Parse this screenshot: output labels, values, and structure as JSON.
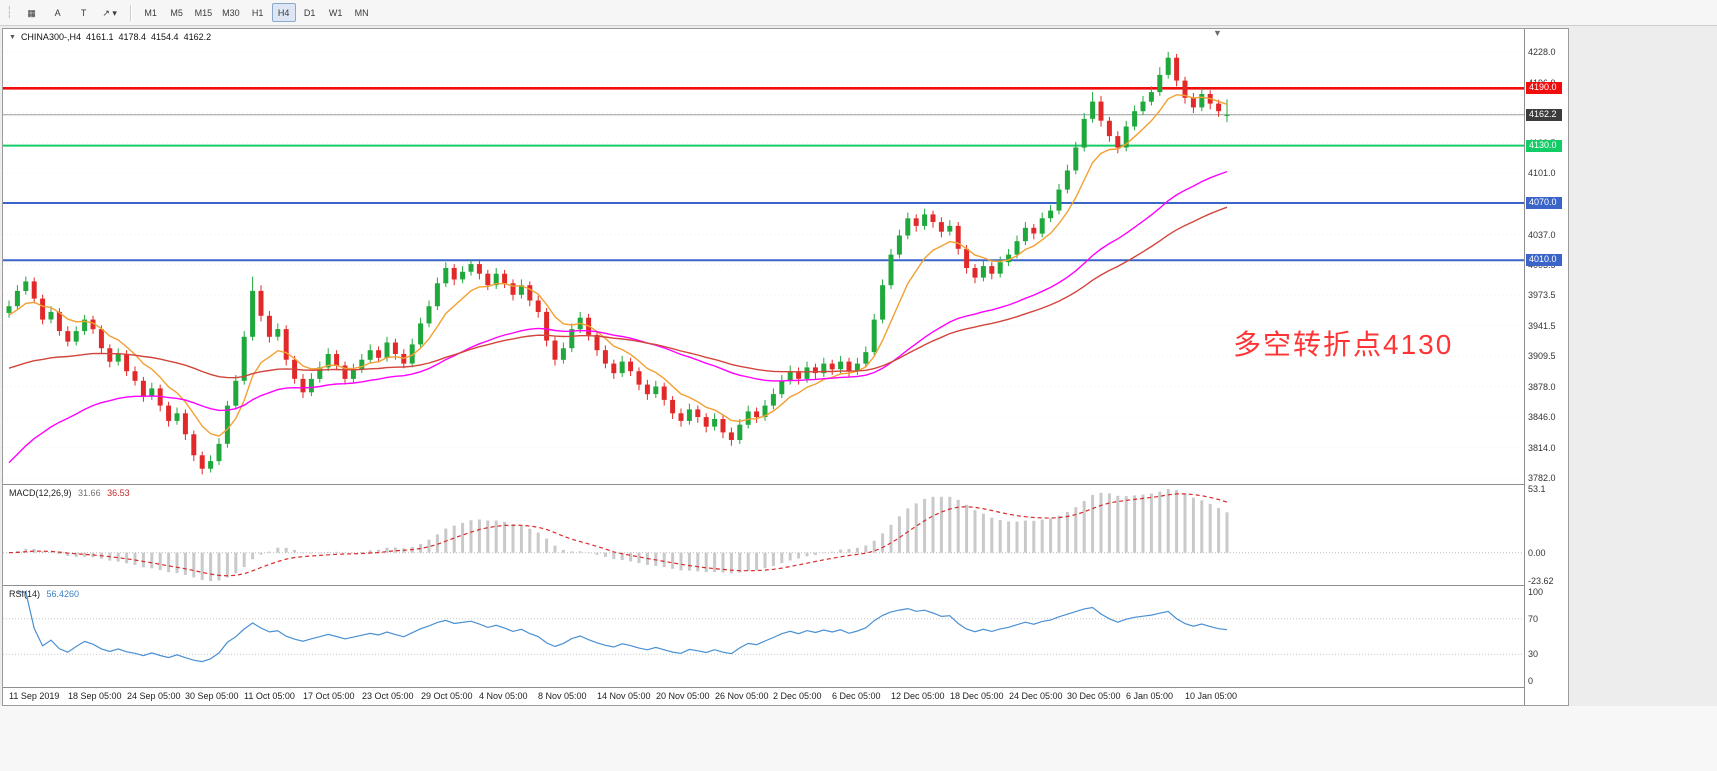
{
  "toolbar": {
    "tools": [
      {
        "name": "chart-window-tool-icon",
        "glyph": "▦"
      },
      {
        "name": "text-a-tool-icon",
        "glyph": "A"
      },
      {
        "name": "text-t-tool-icon",
        "glyph": "T"
      },
      {
        "name": "arrow-draw-tool-icon",
        "glyph": "↗ ▾"
      }
    ],
    "timeframes": [
      "M1",
      "M5",
      "M15",
      "M30",
      "H1",
      "H4",
      "D1",
      "W1",
      "MN"
    ],
    "active_timeframe": "H4"
  },
  "chart_data": {
    "type": "candlestick",
    "symbol": "CHINA300-",
    "timeframe": "H4",
    "symbol_tf": "CHINA300-,H4",
    "quote": {
      "open": "4161.1",
      "high": "4178.4",
      "low": "4154.4",
      "close": "4162.2"
    },
    "candle_colors": {
      "up": "#1fa83c",
      "down": "#e22929"
    },
    "price_axis": {
      "min": 3776,
      "max": 4252,
      "ticks": [
        3782,
        3814,
        3846,
        3878,
        3909.5,
        3941.5,
        3973.5,
        4005.5,
        4037,
        4069,
        4101,
        4132.5,
        4164.5,
        4196,
        4228
      ],
      "tick_labels": [
        "3782.0",
        "3814.0",
        "3846.0",
        "3878.0",
        "3909.5",
        "3941.5",
        "3973.5",
        "4005.5",
        "4037.0",
        "4069.0",
        "4101.0",
        "4132.5",
        "4164.5",
        "4196.0",
        "4228.0"
      ]
    },
    "x_axis": {
      "labels": [
        "11 Sep 2019",
        "18 Sep 05:00",
        "24 Sep 05:00",
        "30 Sep 05:00",
        "11 Oct 05:00",
        "17 Oct 05:00",
        "23 Oct 05:00",
        "29 Oct 05:00",
        "4 Nov 05:00",
        "8 Nov 05:00",
        "14 Nov 05:00",
        "20 Nov 05:00",
        "26 Nov 05:00",
        "2 Dec 05:00",
        "6 Dec 05:00",
        "12 Dec 05:00",
        "18 Dec 05:00",
        "24 Dec 05:00",
        "30 Dec 05:00",
        "6 Jan 05:00",
        "10 Jan 05:00"
      ],
      "label_every_n_candles": 7
    },
    "hlines": [
      {
        "value": 4190.0,
        "label": "4190.0",
        "color": "#f20d0d"
      },
      {
        "value": 4130.0,
        "label": "4130.0",
        "color": "#14cc66"
      },
      {
        "value": 4070.0,
        "label": "4070.0",
        "color": "#3a64c8"
      },
      {
        "value": 4010.0,
        "label": "4010.0",
        "color": "#3a64c8"
      }
    ],
    "current_price": {
      "value": 4162.2,
      "label": "4162.2",
      "bg": "#3c3c3c"
    },
    "annotation": {
      "text": "多空转折点4130",
      "color": "#ff3434"
    },
    "moving_averages": [
      {
        "name": "ma-fast-orange",
        "color": "#f2a031",
        "period": 8,
        "seed": 3950
      },
      {
        "name": "ma-mid-magenta",
        "color": "#ff00ff",
        "period": 40,
        "seed": 3790
      },
      {
        "name": "ma-slow-red",
        "color": "#d2453c",
        "period": 60,
        "seed": 3895
      }
    ],
    "macd": {
      "label": "MACD(12,26,9)",
      "value_main": "31.66",
      "value_signal": "36.53",
      "value_main_color": "#707070",
      "value_signal_color": "#c22929",
      "fast": 12,
      "slow": 26,
      "signal": 9,
      "axis_max": 53.1,
      "axis_min": -23.62,
      "tick_labels": [
        "53.1",
        "0.00",
        "-23.62"
      ],
      "histogram_color": "#c9c9c9",
      "signal_color": "#d92b2b"
    },
    "rsi": {
      "label": "RSI(14)",
      "value": "56.4260",
      "value_color": "#3b7fc4",
      "period": 14,
      "levels": [
        70,
        30
      ],
      "axis_min": 0,
      "axis_max": 100,
      "tick_labels": [
        "100",
        "70",
        "30",
        "0"
      ],
      "color": "#4a90d2"
    },
    "candles_ohlc": [
      [
        3955,
        3968,
        3950,
        3962
      ],
      [
        3962,
        3984,
        3958,
        3978
      ],
      [
        3978,
        3993,
        3974,
        3988
      ],
      [
        3988,
        3992,
        3965,
        3970
      ],
      [
        3970,
        3974,
        3943,
        3948
      ],
      [
        3948,
        3962,
        3944,
        3956
      ],
      [
        3956,
        3960,
        3931,
        3936
      ],
      [
        3936,
        3941,
        3920,
        3925
      ],
      [
        3925,
        3941,
        3921,
        3936
      ],
      [
        3936,
        3953,
        3932,
        3948
      ],
      [
        3948,
        3952,
        3933,
        3938
      ],
      [
        3938,
        3942,
        3913,
        3918
      ],
      [
        3918,
        3922,
        3898,
        3904
      ],
      [
        3904,
        3918,
        3900,
        3912
      ],
      [
        3912,
        3916,
        3889,
        3894
      ],
      [
        3894,
        3899,
        3879,
        3884
      ],
      [
        3884,
        3888,
        3862,
        3868
      ],
      [
        3868,
        3882,
        3864,
        3876
      ],
      [
        3876,
        3880,
        3852,
        3858
      ],
      [
        3858,
        3862,
        3836,
        3842
      ],
      [
        3842,
        3856,
        3838,
        3850
      ],
      [
        3850,
        3854,
        3822,
        3828
      ],
      [
        3828,
        3832,
        3800,
        3806
      ],
      [
        3806,
        3810,
        3786,
        3792
      ],
      [
        3792,
        3806,
        3788,
        3800
      ],
      [
        3800,
        3824,
        3796,
        3818
      ],
      [
        3818,
        3863,
        3814,
        3858
      ],
      [
        3858,
        3890,
        3854,
        3884
      ],
      [
        3884,
        3936,
        3880,
        3930
      ],
      [
        3930,
        3993,
        3926,
        3978
      ],
      [
        3978,
        3984,
        3946,
        3952
      ],
      [
        3952,
        3957,
        3924,
        3930
      ],
      [
        3930,
        3944,
        3926,
        3938
      ],
      [
        3938,
        3942,
        3900,
        3906
      ],
      [
        3906,
        3910,
        3881,
        3886
      ],
      [
        3886,
        3891,
        3866,
        3872
      ],
      [
        3872,
        3892,
        3868,
        3886
      ],
      [
        3886,
        3904,
        3882,
        3898
      ],
      [
        3898,
        3918,
        3894,
        3912
      ],
      [
        3912,
        3916,
        3895,
        3900
      ],
      [
        3900,
        3904,
        3880,
        3886
      ],
      [
        3886,
        3902,
        3882,
        3896
      ],
      [
        3896,
        3912,
        3892,
        3906
      ],
      [
        3906,
        3922,
        3902,
        3916
      ],
      [
        3916,
        3920,
        3903,
        3908
      ],
      [
        3908,
        3930,
        3904,
        3924
      ],
      [
        3924,
        3928,
        3906,
        3912
      ],
      [
        3912,
        3917,
        3897,
        3902
      ],
      [
        3902,
        3928,
        3898,
        3922
      ],
      [
        3922,
        3950,
        3918,
        3944
      ],
      [
        3944,
        3968,
        3940,
        3962
      ],
      [
        3962,
        3992,
        3958,
        3986
      ],
      [
        3986,
        4008,
        3982,
        4002
      ],
      [
        4002,
        4006,
        3984,
        3990
      ],
      [
        3990,
        4004,
        3986,
        3998
      ],
      [
        3998,
        4011,
        3994,
        4006
      ],
      [
        4006,
        4010,
        3990,
        3996
      ],
      [
        3996,
        4000,
        3979,
        3984
      ],
      [
        3984,
        4002,
        3980,
        3996
      ],
      [
        3996,
        4000,
        3981,
        3986
      ],
      [
        3986,
        3990,
        3968,
        3974
      ],
      [
        3974,
        3990,
        3970,
        3984
      ],
      [
        3984,
        3988,
        3962,
        3968
      ],
      [
        3968,
        3973,
        3950,
        3956
      ],
      [
        3956,
        3960,
        3920,
        3926
      ],
      [
        3926,
        3930,
        3900,
        3906
      ],
      [
        3906,
        3924,
        3902,
        3918
      ],
      [
        3918,
        3944,
        3914,
        3938
      ],
      [
        3938,
        3956,
        3934,
        3950
      ],
      [
        3950,
        3954,
        3926,
        3932
      ],
      [
        3932,
        3936,
        3910,
        3916
      ],
      [
        3916,
        3921,
        3897,
        3902
      ],
      [
        3902,
        3906,
        3886,
        3892
      ],
      [
        3892,
        3910,
        3888,
        3904
      ],
      [
        3904,
        3908,
        3889,
        3894
      ],
      [
        3894,
        3898,
        3874,
        3880
      ],
      [
        3880,
        3885,
        3864,
        3870
      ],
      [
        3870,
        3884,
        3866,
        3878
      ],
      [
        3878,
        3882,
        3858,
        3864
      ],
      [
        3864,
        3868,
        3844,
        3850
      ],
      [
        3850,
        3855,
        3836,
        3842
      ],
      [
        3842,
        3860,
        3838,
        3854
      ],
      [
        3854,
        3858,
        3840,
        3846
      ],
      [
        3846,
        3850,
        3830,
        3836
      ],
      [
        3836,
        3850,
        3832,
        3844
      ],
      [
        3844,
        3848,
        3824,
        3830
      ],
      [
        3830,
        3835,
        3816,
        3822
      ],
      [
        3822,
        3844,
        3818,
        3838
      ],
      [
        3838,
        3858,
        3834,
        3852
      ],
      [
        3852,
        3856,
        3840,
        3846
      ],
      [
        3846,
        3864,
        3842,
        3858
      ],
      [
        3858,
        3876,
        3854,
        3870
      ],
      [
        3870,
        3890,
        3866,
        3884
      ],
      [
        3884,
        3900,
        3880,
        3894
      ],
      [
        3894,
        3898,
        3880,
        3886
      ],
      [
        3886,
        3904,
        3882,
        3898
      ],
      [
        3898,
        3902,
        3886,
        3892
      ],
      [
        3892,
        3908,
        3888,
        3902
      ],
      [
        3902,
        3906,
        3890,
        3896
      ],
      [
        3896,
        3910,
        3892,
        3904
      ],
      [
        3904,
        3908,
        3888,
        3894
      ],
      [
        3894,
        3908,
        3890,
        3902
      ],
      [
        3902,
        3920,
        3898,
        3914
      ],
      [
        3914,
        3954,
        3910,
        3948
      ],
      [
        3948,
        3990,
        3944,
        3984
      ],
      [
        3984,
        4022,
        3980,
        4016
      ],
      [
        4016,
        4042,
        4012,
        4036
      ],
      [
        4036,
        4060,
        4032,
        4054
      ],
      [
        4054,
        4058,
        4040,
        4046
      ],
      [
        4046,
        4064,
        4042,
        4058
      ],
      [
        4058,
        4062,
        4044,
        4050
      ],
      [
        4050,
        4055,
        4034,
        4040
      ],
      [
        4040,
        4052,
        4036,
        4046
      ],
      [
        4046,
        4050,
        4016,
        4022
      ],
      [
        4022,
        4026,
        3996,
        4002
      ],
      [
        4002,
        4006,
        3986,
        3992
      ],
      [
        3992,
        4010,
        3988,
        4004
      ],
      [
        4004,
        4008,
        3990,
        3996
      ],
      [
        3996,
        4014,
        3992,
        4008
      ],
      [
        4008,
        4022,
        4004,
        4016
      ],
      [
        4016,
        4036,
        4012,
        4030
      ],
      [
        4030,
        4050,
        4026,
        4044
      ],
      [
        4044,
        4048,
        4032,
        4038
      ],
      [
        4038,
        4060,
        4034,
        4054
      ],
      [
        4054,
        4068,
        4050,
        4062
      ],
      [
        4062,
        4090,
        4058,
        4084
      ],
      [
        4084,
        4110,
        4080,
        4104
      ],
      [
        4104,
        4134,
        4100,
        4128
      ],
      [
        4128,
        4164,
        4124,
        4158
      ],
      [
        4158,
        4186,
        4154,
        4176
      ],
      [
        4176,
        4182,
        4150,
        4156
      ],
      [
        4156,
        4160,
        4134,
        4140
      ],
      [
        4140,
        4145,
        4122,
        4128
      ],
      [
        4128,
        4156,
        4124,
        4150
      ],
      [
        4150,
        4172,
        4146,
        4166
      ],
      [
        4166,
        4182,
        4162,
        4176
      ],
      [
        4176,
        4192,
        4172,
        4186
      ],
      [
        4186,
        4212,
        4182,
        4204
      ],
      [
        4204,
        4228,
        4200,
        4222
      ],
      [
        4222,
        4226,
        4192,
        4198
      ],
      [
        4198,
        4202,
        4174,
        4180
      ],
      [
        4180,
        4185,
        4164,
        4170
      ],
      [
        4170,
        4190,
        4166,
        4184
      ],
      [
        4184,
        4188,
        4168,
        4174
      ],
      [
        4174,
        4178,
        4160,
        4166
      ],
      [
        4161.1,
        4178.4,
        4154.4,
        4162.2
      ]
    ]
  }
}
